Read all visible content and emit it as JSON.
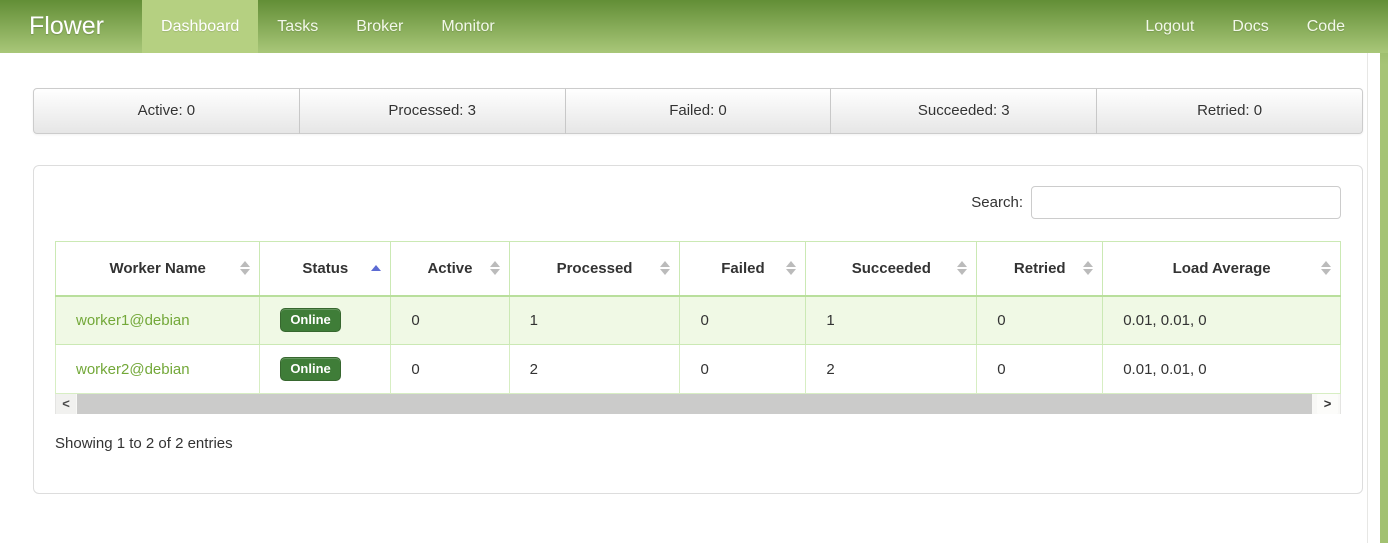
{
  "brand": "Flower",
  "nav": {
    "items": [
      {
        "label": "Dashboard",
        "active": true
      },
      {
        "label": "Tasks",
        "active": false
      },
      {
        "label": "Broker",
        "active": false
      },
      {
        "label": "Monitor",
        "active": false
      }
    ],
    "right_items": [
      {
        "label": "Logout"
      },
      {
        "label": "Docs"
      },
      {
        "label": "Code"
      }
    ]
  },
  "stats": [
    "Active: 0",
    "Processed: 3",
    "Failed: 0",
    "Succeeded: 3",
    "Retried: 0"
  ],
  "search": {
    "label": "Search:",
    "value": "",
    "placeholder": ""
  },
  "table": {
    "columns": [
      {
        "label": "Worker Name",
        "key": "worker",
        "sort": "both"
      },
      {
        "label": "Status",
        "key": "status",
        "sort": "asc"
      },
      {
        "label": "Active",
        "key": "active",
        "sort": "both"
      },
      {
        "label": "Processed",
        "key": "processed",
        "sort": "both"
      },
      {
        "label": "Failed",
        "key": "failed",
        "sort": "both"
      },
      {
        "label": "Succeeded",
        "key": "succeeded",
        "sort": "both"
      },
      {
        "label": "Retried",
        "key": "retried",
        "sort": "both"
      },
      {
        "label": "Load Average",
        "key": "load_average",
        "sort": "both"
      }
    ],
    "rows": [
      {
        "worker": "worker1@debian",
        "status": "Online",
        "active": "0",
        "processed": "1",
        "failed": "0",
        "succeeded": "1",
        "retried": "0",
        "load_average": "0.01, 0.01, 0"
      },
      {
        "worker": "worker2@debian",
        "status": "Online",
        "active": "0",
        "processed": "2",
        "failed": "0",
        "succeeded": "2",
        "retried": "0",
        "load_average": "0.01, 0.01, 0"
      }
    ],
    "summary": "Showing 1 to 2 of 2 entries"
  },
  "scrollbar": {
    "left_glyph": "<",
    "right_glyph": ">"
  },
  "colors": {
    "navbar_top": "#628e36",
    "navbar_bottom": "#a9c779",
    "navbar_active_item": "#b5d081",
    "link_green": "#73a839",
    "badge_green": "#3f7d38",
    "table_border_green": "#cbe9b4",
    "row_stripe_green": "#f0f9e5",
    "sort_active_arrow": "#5c6bd3"
  }
}
